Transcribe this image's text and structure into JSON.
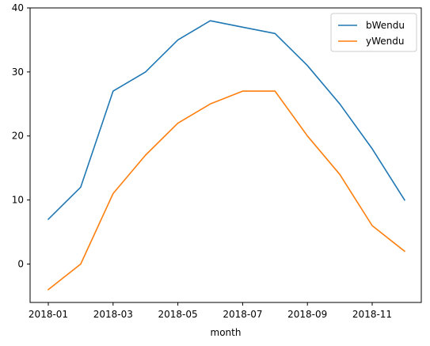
{
  "chart_data": {
    "type": "line",
    "title": "",
    "xlabel": "month",
    "ylabel": "",
    "x": [
      "2018-01",
      "2018-02",
      "2018-03",
      "2018-04",
      "2018-05",
      "2018-06",
      "2018-07",
      "2018-08",
      "2018-09",
      "2018-10",
      "2018-11",
      "2018-12"
    ],
    "x_ticks": [
      "2018-01",
      "2018-03",
      "2018-05",
      "2018-07",
      "2018-09",
      "2018-11"
    ],
    "y_ticks": [
      0,
      10,
      20,
      30,
      40
    ],
    "ylim": [
      -6,
      40
    ],
    "grid": false,
    "legend_position": "top-right",
    "series": [
      {
        "name": "bWendu",
        "color": "#1f77b4",
        "values": [
          7,
          12,
          27,
          30,
          35,
          38,
          37,
          36,
          31,
          25,
          18,
          10
        ]
      },
      {
        "name": "yWendu",
        "color": "#ff7f0e",
        "values": [
          -4,
          0,
          11,
          17,
          22,
          25,
          27,
          27,
          20,
          14,
          6,
          2
        ]
      }
    ]
  }
}
